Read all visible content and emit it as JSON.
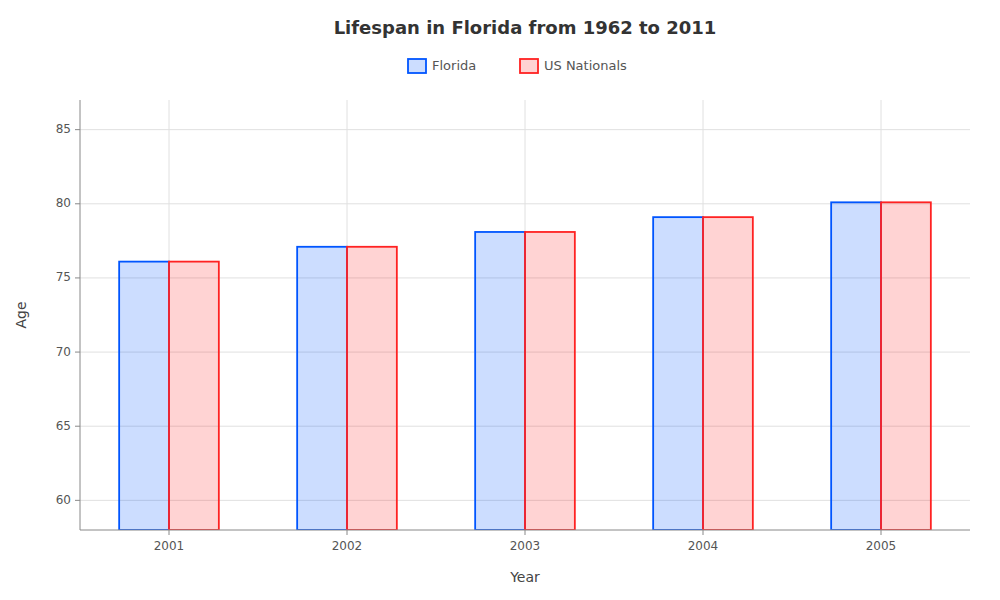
{
  "chart_data": {
    "type": "bar",
    "title": "Lifespan in Florida from 1962 to 2011",
    "x_label": "Year",
    "y_label": "Age",
    "categories": [
      "2001",
      "2002",
      "2003",
      "2004",
      "2005"
    ],
    "series": [
      {
        "name": "Florida",
        "color": "#0055ff",
        "values": [
          76.1,
          77.1,
          78.1,
          79.1,
          80.1
        ]
      },
      {
        "name": "US Nationals",
        "color": "#ff2222",
        "values": [
          76.1,
          77.1,
          78.1,
          79.1,
          80.1
        ]
      }
    ],
    "ylim": [
      58,
      87
    ],
    "yticks": [
      60,
      65,
      70,
      75,
      80,
      85
    ],
    "grid": true,
    "legend": "upper center"
  }
}
